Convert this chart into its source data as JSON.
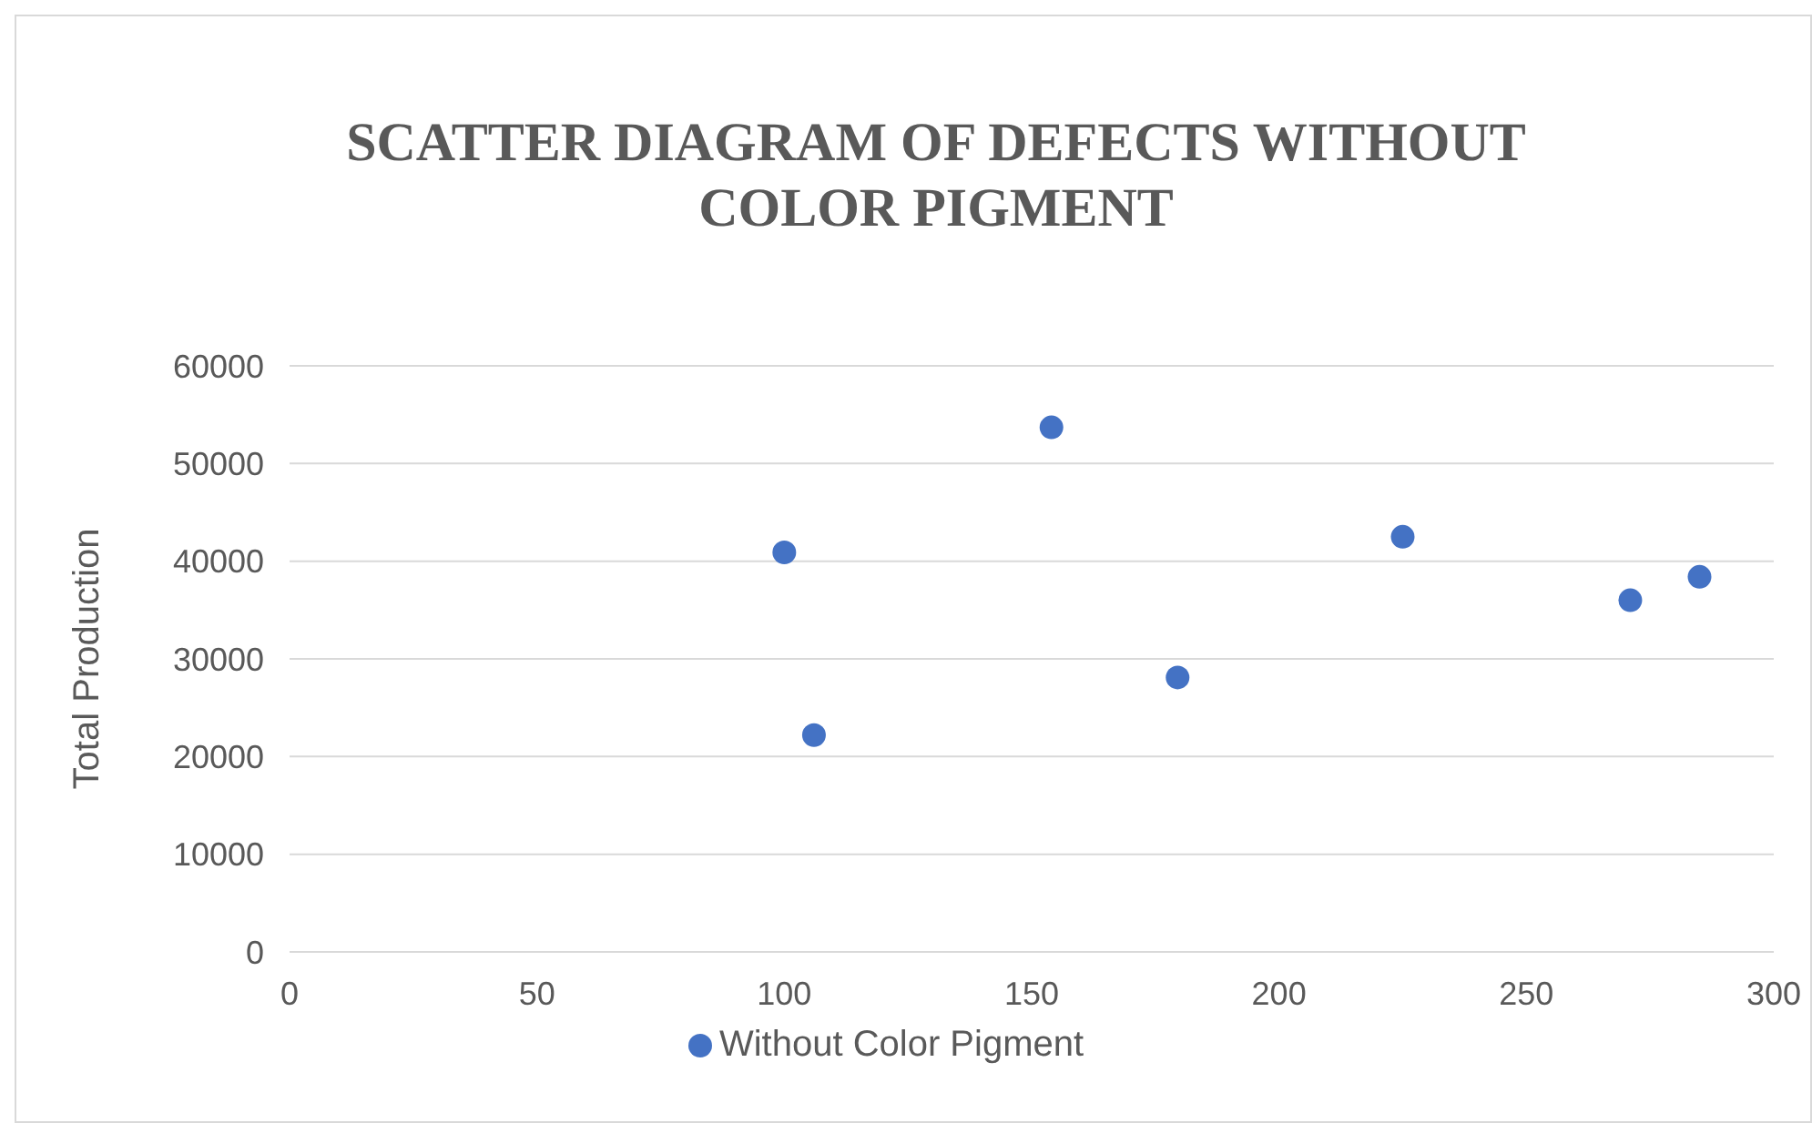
{
  "chart_data": {
    "type": "scatter",
    "title": "SCATTER DIAGRAM OF DEFECTS WITHOUT COLOR PIGMENT",
    "ylabel": "Total Production",
    "x": [
      100,
      106,
      154,
      179.5,
      225,
      271,
      285
    ],
    "series": [
      {
        "name": "Without Color Pigment",
        "color": "#4472c4",
        "values": [
          40900,
          22200,
          53700,
          28100,
          42500,
          36000,
          38400
        ]
      }
    ],
    "xlim": [
      0,
      300
    ],
    "xticks": [
      0,
      50,
      100,
      150,
      200,
      250,
      300
    ],
    "ylim": [
      0,
      60000
    ],
    "yticks": [
      0,
      10000,
      20000,
      30000,
      40000,
      50000,
      60000
    ],
    "grid": "y",
    "legend": "bottom",
    "marker": "circle"
  }
}
